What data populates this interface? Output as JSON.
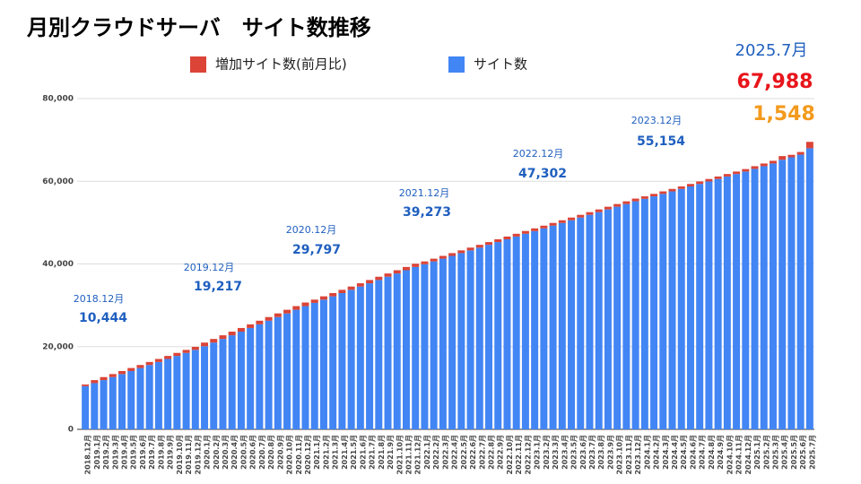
{
  "chart_data": {
    "type": "bar",
    "stacked": true,
    "title": "月別クラウドサーバ　サイト数推移",
    "categories": [
      "2018.12月",
      "2019.1月",
      "2019.2月",
      "2019.3月",
      "2019.4月",
      "2019.5月",
      "2019.6月",
      "2019.7月",
      "2019.8月",
      "2019.9月",
      "2019.10月",
      "2019.11月",
      "2019.12月",
      "2020.1月",
      "2020.2月",
      "2020.3月",
      "2020.4月",
      "2020.5月",
      "2020.6月",
      "2020.7月",
      "2020.8月",
      "2020.9月",
      "2020.10月",
      "2020.11月",
      "2020.12月",
      "2021.1月",
      "2021.2月",
      "2021.3月",
      "2021.4月",
      "2021.5月",
      "2021.6月",
      "2021.7月",
      "2021.8月",
      "2021.9月",
      "2021.10月",
      "2021.11月",
      "2021.12月",
      "2022.1月",
      "2022.2月",
      "2022.3月",
      "2022.4月",
      "2022.5月",
      "2022.6月",
      "2022.7月",
      "2022.8月",
      "2022.9月",
      "2022.10月",
      "2022.11月",
      "2022.12月",
      "2023.1月",
      "2023.2月",
      "2023.3月",
      "2023.4月",
      "2023.5月",
      "2023.6月",
      "2023.7月",
      "2023.8月",
      "2023.9月",
      "2023.10月",
      "2023.11月",
      "2023.12月",
      "2024.1月",
      "2024.2月",
      "2024.3月",
      "2024.4月",
      "2024.5月",
      "2024.6月",
      "2024.7月",
      "2024.8月",
      "2024.9月",
      "2024.10月",
      "2024.11月",
      "2024.12月",
      "2025.1月",
      "2025.2月",
      "2025.3月",
      "2025.4月",
      "2025.5月",
      "2025.6月",
      "2025.7月"
    ],
    "series": [
      {
        "name": "増加サイト数(前月比)",
        "color": "#db4437",
        "values": [
          400,
          731,
          731,
          731,
          731,
          731,
          731,
          731,
          731,
          731,
          731,
          731,
          732,
          882,
          882,
          882,
          882,
          882,
          882,
          882,
          882,
          882,
          882,
          882,
          878,
          790,
          790,
          790,
          790,
          790,
          790,
          790,
          790,
          790,
          790,
          790,
          786,
          669,
          669,
          669,
          669,
          669,
          669,
          669,
          669,
          669,
          669,
          669,
          670,
          654,
          654,
          654,
          654,
          654,
          654,
          654,
          654,
          654,
          654,
          654,
          658,
          600,
          600,
          600,
          600,
          600,
          600,
          600,
          600,
          600,
          600,
          600,
          600,
          646,
          650,
          650,
          900,
          600,
          640,
          1548
        ]
      },
      {
        "name": "サイト数",
        "color": "#4285f4",
        "values": [
          10444,
          11175,
          11906,
          12637,
          13368,
          14099,
          14830,
          15561,
          16292,
          17023,
          17754,
          18485,
          19217,
          20099,
          20981,
          21863,
          22745,
          23627,
          24509,
          25391,
          26273,
          27155,
          28037,
          28919,
          29797,
          30587,
          31377,
          32167,
          32957,
          33747,
          34537,
          35327,
          36117,
          36907,
          37697,
          38487,
          39273,
          39942,
          40611,
          41280,
          41949,
          42618,
          43287,
          43956,
          44625,
          45294,
          45963,
          46632,
          47302,
          47956,
          48610,
          49264,
          49918,
          50572,
          51226,
          51880,
          52534,
          53188,
          53842,
          54496,
          55154,
          55754,
          56354,
          56954,
          57554,
          58154,
          58754,
          59354,
          59954,
          60554,
          61154,
          61754,
          62354,
          63000,
          63650,
          64300,
          65200,
          65800,
          66440,
          67988
        ]
      }
    ],
    "ylim": [
      0,
      80000
    ],
    "yticks": [
      0,
      {
        "value": 20000,
        "label": "20,000"
      },
      {
        "value": 40000,
        "label": "40,000"
      },
      {
        "value": 60000,
        "label": "60,000"
      },
      {
        "value": 80000,
        "label": "80,000"
      }
    ],
    "grid": true,
    "legend": "top",
    "annotations": [
      {
        "label": "2018.12月",
        "text": "10,444"
      },
      {
        "label": "2019.12月",
        "text": "19,217"
      },
      {
        "label": "2020.12月",
        "text": "29,797"
      },
      {
        "label": "2021.12月",
        "text": "39,273"
      },
      {
        "label": "2022.12月",
        "text": "47,302"
      },
      {
        "label": "2023.12月",
        "text": "55,154"
      }
    ],
    "latest": {
      "label": "2025.7月",
      "total": "67,988",
      "increase": "1,548"
    }
  }
}
